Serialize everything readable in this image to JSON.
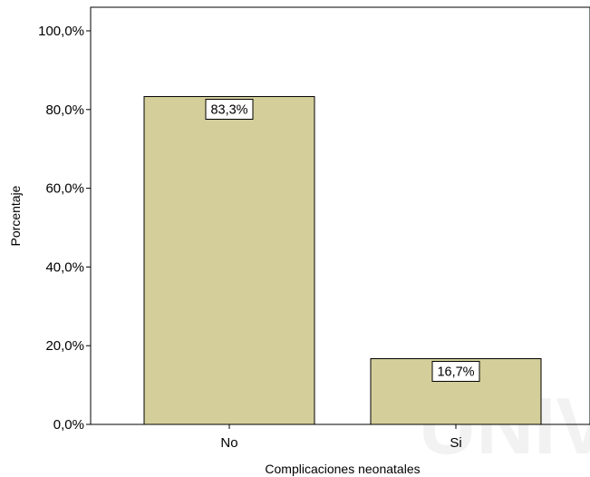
{
  "chart_data": {
    "type": "bar",
    "categories": [
      "No",
      "Si"
    ],
    "values": [
      83.3,
      16.7
    ],
    "data_labels": [
      "83,3%",
      "16,7%"
    ],
    "title": "",
    "xlabel": "Complicaciones neonatales",
    "ylabel": "Porcentaje",
    "ylim": [
      0,
      100
    ],
    "y_ticks": [
      0,
      20,
      40,
      60,
      80,
      100
    ],
    "y_tick_labels": [
      "0,0%",
      "20,0%",
      "40,0%",
      "60,0%",
      "80,0%",
      "100,0%"
    ],
    "grid": false,
    "legend": "none",
    "bar_color": "#d4cf9a",
    "bar_edge_color": "#000000"
  },
  "watermark": {
    "text": "UNIV"
  }
}
